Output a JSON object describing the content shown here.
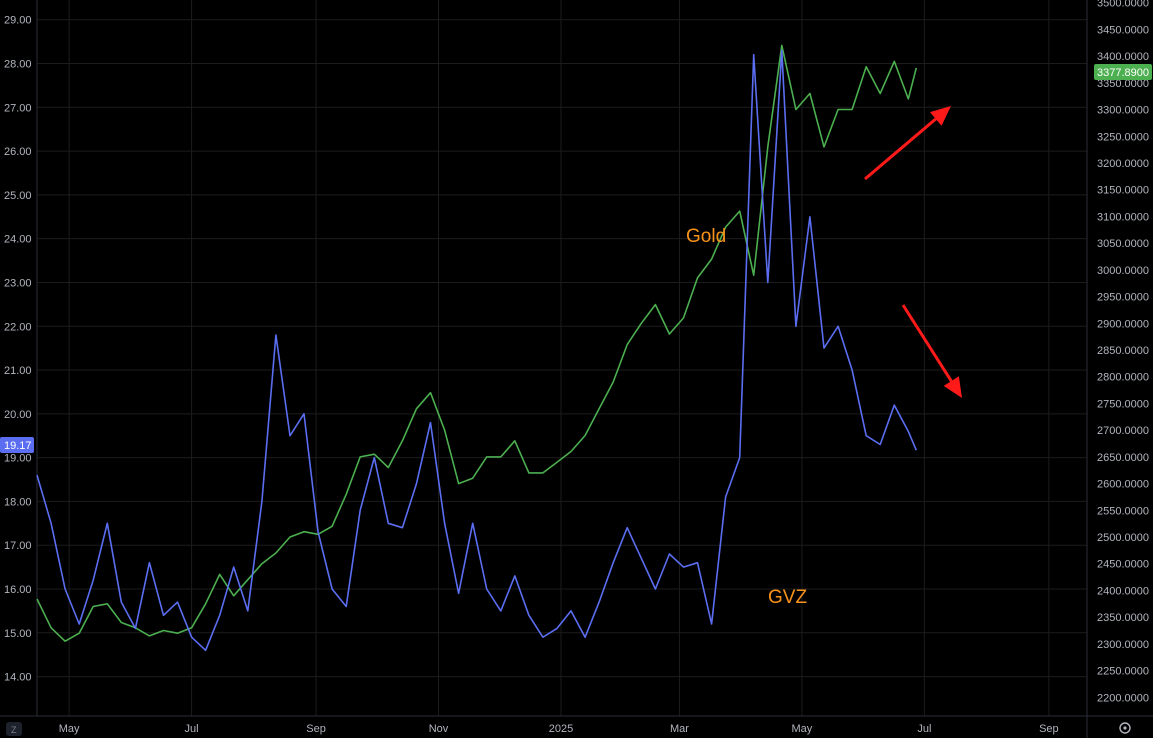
{
  "chart_data": {
    "type": "line",
    "x_ticks": [
      "May",
      "Jul",
      "Sep",
      "Nov",
      "2025",
      "Mar",
      "May",
      "Jul",
      "Sep"
    ],
    "x_range": [
      "2024-04-15",
      "2025-09-20"
    ],
    "left_axis": {
      "ticks": [
        "14.00",
        "15.00",
        "16.00",
        "17.00",
        "18.00",
        "19.00",
        "20.00",
        "21.00",
        "22.00",
        "23.00",
        "24.00",
        "25.00",
        "26.00",
        "27.00",
        "28.00",
        "29.00"
      ],
      "ylim": [
        13.1,
        29.45
      ],
      "last_value_label": "19.17"
    },
    "right_axis": {
      "ticks": [
        "2200.0000",
        "2250.0000",
        "2300.0000",
        "2350.0000",
        "2400.0000",
        "2450.0000",
        "2500.0000",
        "2550.0000",
        "2600.0000",
        "2650.0000",
        "2700.0000",
        "2750.0000",
        "2800.0000",
        "2850.0000",
        "2900.0000",
        "2950.0000",
        "3000.0000",
        "3050.0000",
        "3100.0000",
        "3150.0000",
        "3200.0000",
        "3250.0000",
        "3300.0000",
        "3350.0000",
        "3400.0000",
        "3450.0000",
        "3500.0000"
      ],
      "ylim": [
        2165,
        3505
      ],
      "last_value_label": "3377.8900"
    },
    "series": [
      {
        "name": "Gold",
        "axis": "right",
        "color": "#4caf50",
        "points": [
          [
            "2024-04-15",
            2384
          ],
          [
            "2024-04-22",
            2330
          ],
          [
            "2024-04-29",
            2305
          ],
          [
            "2024-05-06",
            2320
          ],
          [
            "2024-05-13",
            2370
          ],
          [
            "2024-05-20",
            2375
          ],
          [
            "2024-05-27",
            2340
          ],
          [
            "2024-06-03",
            2330
          ],
          [
            "2024-06-10",
            2315
          ],
          [
            "2024-06-17",
            2325
          ],
          [
            "2024-06-24",
            2320
          ],
          [
            "2024-07-01",
            2330
          ],
          [
            "2024-07-08",
            2375
          ],
          [
            "2024-07-15",
            2430
          ],
          [
            "2024-07-22",
            2390
          ],
          [
            "2024-07-29",
            2420
          ],
          [
            "2024-08-05",
            2450
          ],
          [
            "2024-08-12",
            2470
          ],
          [
            "2024-08-19",
            2500
          ],
          [
            "2024-08-26",
            2510
          ],
          [
            "2024-09-02",
            2505
          ],
          [
            "2024-09-09",
            2520
          ],
          [
            "2024-09-16",
            2580
          ],
          [
            "2024-09-23",
            2650
          ],
          [
            "2024-09-30",
            2655
          ],
          [
            "2024-10-07",
            2630
          ],
          [
            "2024-10-14",
            2680
          ],
          [
            "2024-10-21",
            2740
          ],
          [
            "2024-10-28",
            2770
          ],
          [
            "2024-11-04",
            2700
          ],
          [
            "2024-11-11",
            2600
          ],
          [
            "2024-11-18",
            2610
          ],
          [
            "2024-11-25",
            2650
          ],
          [
            "2024-12-02",
            2650
          ],
          [
            "2024-12-09",
            2680
          ],
          [
            "2024-12-16",
            2620
          ],
          [
            "2024-12-23",
            2620
          ],
          [
            "2024-12-30",
            2640
          ],
          [
            "2025-01-06",
            2660
          ],
          [
            "2025-01-13",
            2690
          ],
          [
            "2025-01-20",
            2740
          ],
          [
            "2025-01-27",
            2790
          ],
          [
            "2025-02-03",
            2860
          ],
          [
            "2025-02-10",
            2900
          ],
          [
            "2025-02-17",
            2935
          ],
          [
            "2025-02-24",
            2880
          ],
          [
            "2025-03-03",
            2910
          ],
          [
            "2025-03-10",
            2985
          ],
          [
            "2025-03-17",
            3020
          ],
          [
            "2025-03-24",
            3080
          ],
          [
            "2025-03-31",
            3110
          ],
          [
            "2025-04-07",
            2990
          ],
          [
            "2025-04-14",
            3230
          ],
          [
            "2025-04-21",
            3420
          ],
          [
            "2025-04-28",
            3300
          ],
          [
            "2025-05-05",
            3330
          ],
          [
            "2025-05-12",
            3230
          ],
          [
            "2025-05-19",
            3300
          ],
          [
            "2025-05-26",
            3300
          ],
          [
            "2025-06-02",
            3380
          ],
          [
            "2025-06-09",
            3330
          ],
          [
            "2025-06-16",
            3390
          ],
          [
            "2025-06-23",
            3320
          ],
          [
            "2025-06-27",
            3377.89
          ]
        ]
      },
      {
        "name": "GVZ",
        "axis": "left",
        "color": "#5b6ef2",
        "points": [
          [
            "2024-04-15",
            18.6
          ],
          [
            "2024-04-22",
            17.5
          ],
          [
            "2024-04-29",
            16.0
          ],
          [
            "2024-05-06",
            15.2
          ],
          [
            "2024-05-13",
            16.2
          ],
          [
            "2024-05-20",
            17.5
          ],
          [
            "2024-05-27",
            15.7
          ],
          [
            "2024-06-03",
            15.1
          ],
          [
            "2024-06-10",
            16.6
          ],
          [
            "2024-06-17",
            15.4
          ],
          [
            "2024-06-24",
            15.7
          ],
          [
            "2024-07-01",
            14.9
          ],
          [
            "2024-07-08",
            14.6
          ],
          [
            "2024-07-15",
            15.4
          ],
          [
            "2024-07-22",
            16.5
          ],
          [
            "2024-07-29",
            15.5
          ],
          [
            "2024-08-05",
            18.0
          ],
          [
            "2024-08-12",
            21.8
          ],
          [
            "2024-08-19",
            19.5
          ],
          [
            "2024-08-26",
            20.0
          ],
          [
            "2024-09-02",
            17.3
          ],
          [
            "2024-09-09",
            16.0
          ],
          [
            "2024-09-16",
            15.6
          ],
          [
            "2024-09-23",
            17.8
          ],
          [
            "2024-09-30",
            19.0
          ],
          [
            "2024-10-07",
            17.5
          ],
          [
            "2024-10-14",
            17.4
          ],
          [
            "2024-10-21",
            18.4
          ],
          [
            "2024-10-28",
            19.8
          ],
          [
            "2024-11-04",
            17.5
          ],
          [
            "2024-11-11",
            15.9
          ],
          [
            "2024-11-18",
            17.5
          ],
          [
            "2024-11-25",
            16.0
          ],
          [
            "2024-12-02",
            15.5
          ],
          [
            "2024-12-09",
            16.3
          ],
          [
            "2024-12-16",
            15.4
          ],
          [
            "2024-12-23",
            14.9
          ],
          [
            "2024-12-30",
            15.1
          ],
          [
            "2025-01-06",
            15.5
          ],
          [
            "2025-01-13",
            14.9
          ],
          [
            "2025-01-20",
            15.7
          ],
          [
            "2025-01-27",
            16.6
          ],
          [
            "2025-02-03",
            17.4
          ],
          [
            "2025-02-10",
            16.7
          ],
          [
            "2025-02-17",
            16.0
          ],
          [
            "2025-02-24",
            16.8
          ],
          [
            "2025-03-03",
            16.5
          ],
          [
            "2025-03-10",
            16.6
          ],
          [
            "2025-03-17",
            15.2
          ],
          [
            "2025-03-24",
            18.1
          ],
          [
            "2025-03-31",
            19.0
          ],
          [
            "2025-04-07",
            28.2
          ],
          [
            "2025-04-14",
            23.0
          ],
          [
            "2025-04-21",
            28.3
          ],
          [
            "2025-04-28",
            22.0
          ],
          [
            "2025-05-05",
            24.5
          ],
          [
            "2025-05-12",
            21.5
          ],
          [
            "2025-05-19",
            22.0
          ],
          [
            "2025-05-26",
            21.0
          ],
          [
            "2025-06-02",
            19.5
          ],
          [
            "2025-06-09",
            19.3
          ],
          [
            "2025-06-16",
            20.2
          ],
          [
            "2025-06-23",
            19.6
          ],
          [
            "2025-06-27",
            19.17
          ]
        ]
      }
    ],
    "annotations": [
      {
        "text": "Gold",
        "color": "#f7931a"
      },
      {
        "text": "GVZ",
        "color": "#f7931a"
      }
    ],
    "arrows": [
      {
        "direction": "up",
        "color": "#ff1a1a"
      },
      {
        "direction": "down",
        "color": "#ff1a1a"
      }
    ],
    "grid": true
  },
  "ui": {
    "corner_left": "Z",
    "settings_icon": "gear-icon",
    "background": "#000000",
    "axis_text_color": "#b2b5be"
  }
}
